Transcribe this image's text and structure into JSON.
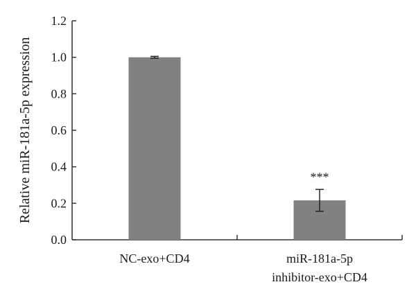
{
  "chart_data": {
    "type": "bar",
    "categories": [
      [
        "NC-exo+CD4"
      ],
      [
        "miR-181a-5p",
        "inhibitor-exo+CD4"
      ]
    ],
    "values": [
      1.0,
      0.216
    ],
    "error": [
      0.005,
      0.06
    ],
    "annotations": [
      "",
      "***"
    ],
    "ylabel": "Relative miR-181a-5p expression",
    "ylim": [
      0,
      1.2
    ],
    "yticks": [
      "0.0",
      "0.2",
      "0.4",
      "0.6",
      "0.8",
      "1.0",
      "1.2"
    ],
    "bar_color": "#808282",
    "grid": false,
    "legend": "none"
  }
}
